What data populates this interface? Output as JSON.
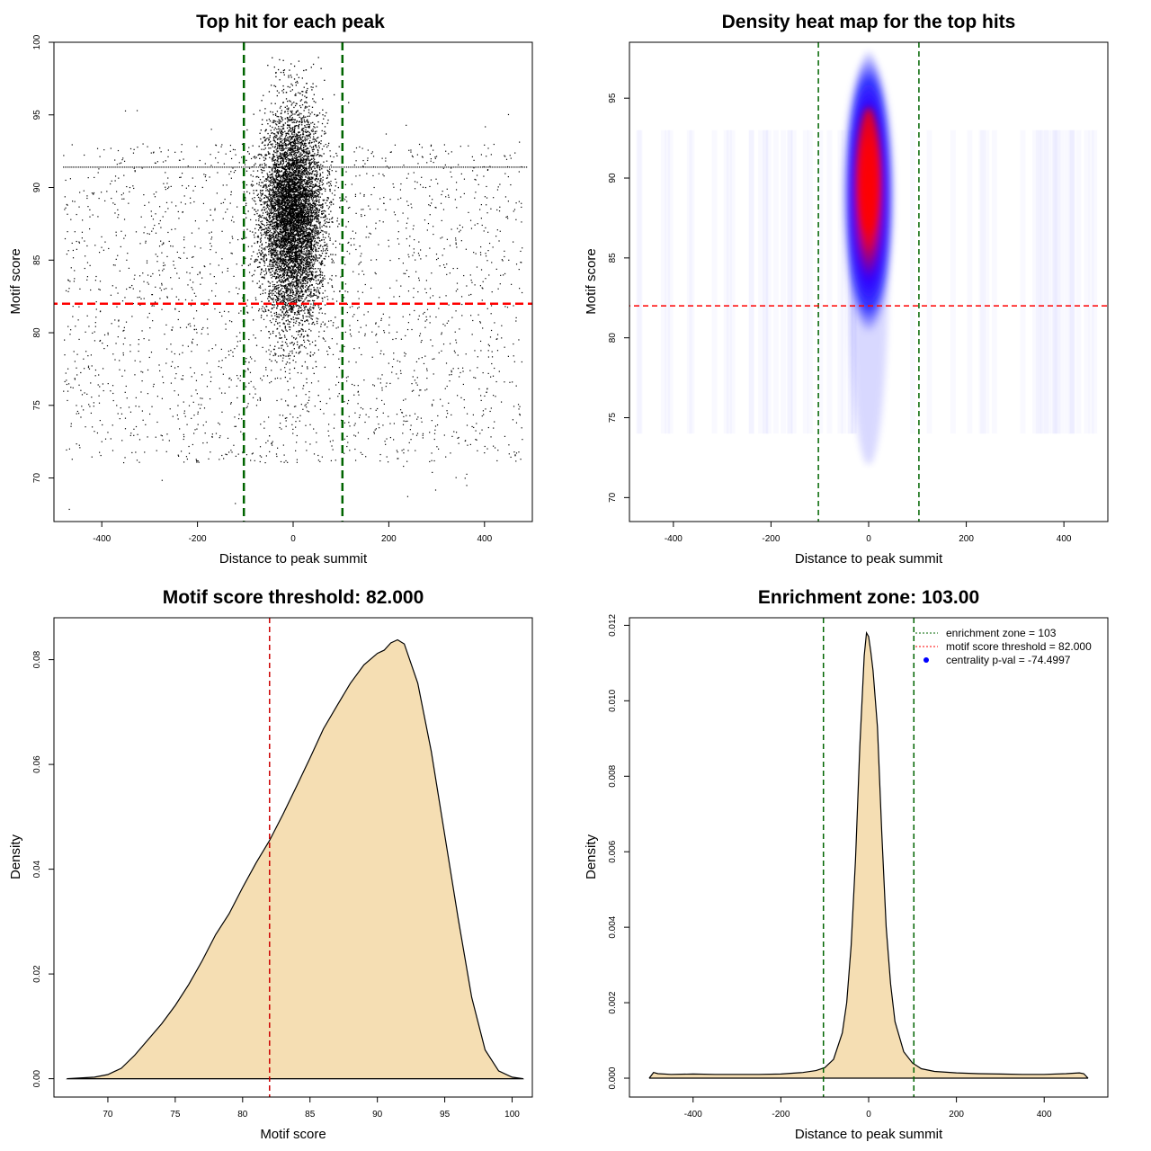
{
  "chart_data": [
    {
      "type": "scatter",
      "title": "Top hit for each peak",
      "xlabel": "Distance to peak summit",
      "ylabel": "Motif score",
      "xlim": [
        -500,
        500
      ],
      "ylim": [
        67,
        100
      ],
      "xticks": [
        -400,
        -200,
        0,
        200,
        400
      ],
      "yticks": [
        70,
        75,
        80,
        85,
        90,
        95,
        100
      ],
      "vlines": [
        -103,
        103
      ],
      "vline_color": "#006400",
      "hline": 82,
      "hline_color": "#ff0000",
      "point_color": "#000000",
      "grid": false
    },
    {
      "type": "heatmap",
      "title": "Density heat map for the top hits",
      "xlabel": "Distance to peak summit",
      "ylabel": "Motif score",
      "xlim": [
        -490,
        490
      ],
      "ylim": [
        68.5,
        98.5
      ],
      "xticks": [
        -400,
        -200,
        0,
        200,
        400
      ],
      "yticks": [
        70,
        75,
        80,
        85,
        90,
        95
      ],
      "vlines": [
        -103,
        103
      ],
      "vline_color": "#006400",
      "hline": 82,
      "hline_color": "#ff0000",
      "colors": [
        "#ffffff",
        "#0000ff",
        "#ff0000"
      ],
      "grid": false
    },
    {
      "type": "area",
      "title": "Motif score threshold: 82.000",
      "xlabel": "Motif score",
      "ylabel": "Density",
      "xlim": [
        66,
        101.5
      ],
      "ylim": [
        -0.0035,
        0.088
      ],
      "xticks": [
        70,
        75,
        80,
        85,
        90,
        95,
        100
      ],
      "yticks": [
        0.0,
        0.02,
        0.04,
        0.06,
        0.08
      ],
      "ytick_labels": [
        "0.00",
        "0.02",
        "0.04",
        "0.06",
        "0.08"
      ],
      "vlines": [
        82
      ],
      "vline_color": "#cc0000",
      "fill": "#f5deb3",
      "x": [
        67,
        69,
        70,
        71,
        72,
        73,
        74,
        75,
        76,
        77,
        78,
        79,
        80,
        81,
        82,
        83,
        84,
        85,
        86,
        87,
        88,
        89,
        90,
        90.5,
        91,
        91.5,
        92,
        93,
        94,
        95,
        96,
        97,
        98,
        99,
        100,
        100.8
      ],
      "y": [
        0.0,
        0.0003,
        0.0008,
        0.002,
        0.0045,
        0.0075,
        0.0105,
        0.014,
        0.018,
        0.0225,
        0.0275,
        0.0315,
        0.0365,
        0.0412,
        0.0455,
        0.0505,
        0.0558,
        0.0612,
        0.0668,
        0.0712,
        0.0755,
        0.079,
        0.0812,
        0.0818,
        0.0832,
        0.0838,
        0.083,
        0.0755,
        0.0625,
        0.0465,
        0.0305,
        0.0155,
        0.0055,
        0.0015,
        0.0003,
        0.0
      ]
    },
    {
      "type": "area",
      "title": "Enrichment zone: 103.00",
      "xlabel": "Distance to peak summit",
      "ylabel": "Density",
      "xlim": [
        -545,
        545
      ],
      "ylim": [
        -0.0005,
        0.0122
      ],
      "xticks": [
        -400,
        -200,
        0,
        200,
        400
      ],
      "yticks": [
        0.0,
        0.002,
        0.004,
        0.006,
        0.008,
        0.01,
        0.012
      ],
      "ytick_labels": [
        "0.000",
        "0.002",
        "0.004",
        "0.006",
        "0.008",
        "0.010",
        "0.012"
      ],
      "vlines": [
        -103,
        103
      ],
      "vline_color": "#006400",
      "fill": "#f5deb3",
      "x": [
        -500,
        -490,
        -480,
        -450,
        -400,
        -350,
        -300,
        -250,
        -200,
        -150,
        -120,
        -100,
        -80,
        -60,
        -50,
        -40,
        -30,
        -20,
        -10,
        -5,
        0,
        5,
        10,
        20,
        30,
        40,
        50,
        60,
        80,
        100,
        120,
        150,
        200,
        250,
        300,
        350,
        400,
        450,
        480,
        490,
        500
      ],
      "y": [
        0.0,
        0.00015,
        0.00012,
        0.0001,
        0.00011,
        0.0001,
        0.0001,
        0.0001,
        0.00011,
        0.00015,
        0.0002,
        0.00028,
        0.0005,
        0.0012,
        0.002,
        0.0035,
        0.0058,
        0.0088,
        0.0112,
        0.0118,
        0.0117,
        0.0113,
        0.0108,
        0.0093,
        0.0065,
        0.004,
        0.0025,
        0.0015,
        0.0007,
        0.0004,
        0.00025,
        0.00018,
        0.00014,
        0.00012,
        0.00011,
        0.0001,
        0.0001,
        0.00012,
        0.00014,
        0.00012,
        0.0
      ]
    }
  ],
  "legend": {
    "placement": "top-right",
    "items": [
      {
        "label": "enrichment zone = 103",
        "color": "#006400",
        "style": "dotted-line"
      },
      {
        "label": "motif score threshold = 82.000",
        "color": "#ff0000",
        "style": "dotted-line"
      },
      {
        "label": "centrality p-val = -74.4997",
        "color": "#0000ff",
        "style": "dot"
      }
    ]
  }
}
